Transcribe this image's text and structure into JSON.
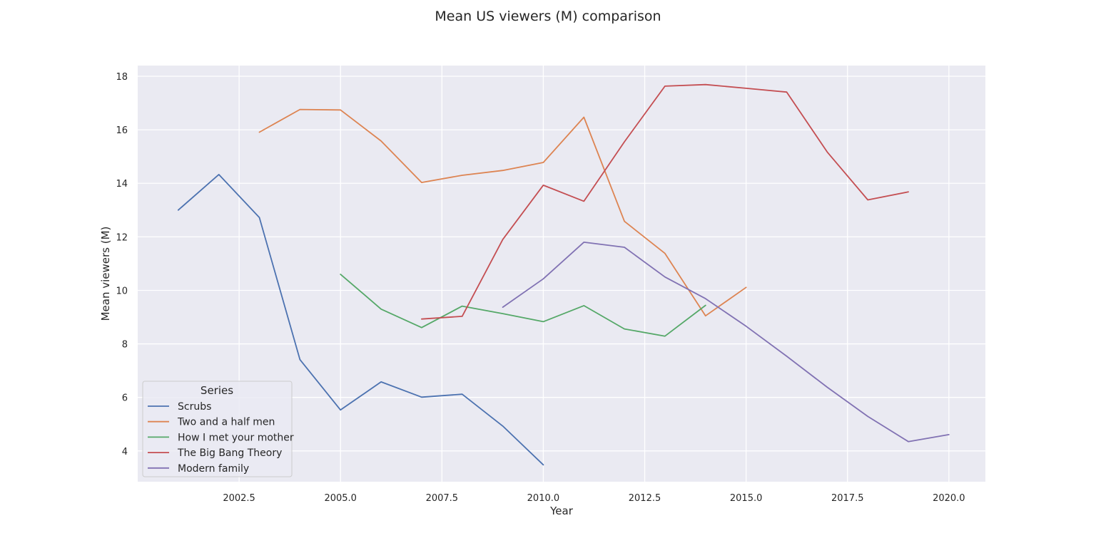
{
  "chart_data": {
    "type": "line",
    "title": "Mean US viewers (M) comparison",
    "xlabel": "Year",
    "ylabel": "Mean viewers (M)",
    "xlim": [
      2000.0,
      2020.9
    ],
    "ylim": [
      2.85,
      18.4
    ],
    "xticks": [
      2002.5,
      2005.0,
      2007.5,
      2010.0,
      2012.5,
      2015.0,
      2017.5,
      2020.0
    ],
    "xtick_labels": [
      "2002.5",
      "2005.0",
      "2007.5",
      "2010.0",
      "2012.5",
      "2015.0",
      "2017.5",
      "2020.0"
    ],
    "yticks": [
      4,
      6,
      8,
      10,
      12,
      14,
      16,
      18
    ],
    "ytick_labels": [
      "4",
      "6",
      "8",
      "10",
      "12",
      "14",
      "16",
      "18"
    ],
    "grid": true,
    "legend": {
      "title": "Series",
      "placement": "lower-left"
    },
    "background": "#eaeaf2",
    "series": [
      {
        "name": "Scrubs",
        "color": "#4c72b0",
        "x": [
          2001,
          2002,
          2003,
          2004,
          2005,
          2006,
          2007,
          2008,
          2009,
          2010
        ],
        "y": [
          13.0,
          14.33,
          12.72,
          7.41,
          5.53,
          6.58,
          6.01,
          6.12,
          4.93,
          3.48
        ]
      },
      {
        "name": "Two and a half men",
        "color": "#dd8452",
        "x": [
          2003,
          2004,
          2005,
          2006,
          2007,
          2008,
          2009,
          2010,
          2011,
          2012,
          2013,
          2014,
          2015
        ],
        "y": [
          15.91,
          16.76,
          16.74,
          15.58,
          14.03,
          14.3,
          14.48,
          14.78,
          16.47,
          12.58,
          11.38,
          9.05,
          10.11
        ]
      },
      {
        "name": "How I met your mother",
        "color": "#55a868",
        "x": [
          2005,
          2006,
          2007,
          2008,
          2009,
          2010,
          2011,
          2012,
          2013,
          2014
        ],
        "y": [
          10.6,
          9.3,
          8.61,
          9.41,
          9.13,
          8.83,
          9.43,
          8.56,
          8.29,
          9.44
        ]
      },
      {
        "name": "The Big Bang Theory",
        "color": "#c44e52",
        "x": [
          2007,
          2008,
          2009,
          2010,
          2011,
          2012,
          2013,
          2014,
          2015,
          2016,
          2017,
          2018,
          2019
        ],
        "y": [
          8.93,
          9.03,
          11.9,
          13.93,
          13.33,
          15.55,
          17.63,
          17.69,
          17.55,
          17.41,
          15.17,
          13.38,
          13.68
        ]
      },
      {
        "name": "Modern family",
        "color": "#8172b3",
        "x": [
          2009,
          2010,
          2011,
          2012,
          2013,
          2014,
          2015,
          2016,
          2017,
          2018,
          2019,
          2020
        ],
        "y": [
          9.37,
          10.43,
          11.8,
          11.61,
          10.5,
          9.69,
          8.66,
          7.54,
          6.38,
          5.29,
          4.35,
          4.61
        ]
      }
    ]
  }
}
